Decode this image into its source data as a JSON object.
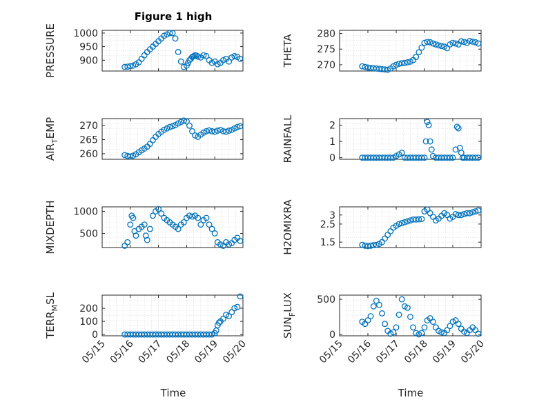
{
  "figure": {
    "title": "Figure 1 high",
    "xlabel": "Time"
  },
  "chart_data": [
    {
      "type": "scatter",
      "ylabel": "PRESSURE",
      "xlim": [
        "05/15",
        "05/20"
      ],
      "ylim": [
        860,
        1010
      ],
      "yticks": [
        900,
        950,
        1000
      ],
      "xticks": [
        "05/15",
        "05/16",
        "05/17",
        "05/18",
        "05/19",
        "05/20"
      ],
      "marker_color": "#0072BD",
      "x": [
        0.8,
        0.9,
        1.0,
        1.1,
        1.2,
        1.3,
        1.4,
        1.5,
        1.6,
        1.7,
        1.8,
        1.9,
        2.0,
        2.1,
        2.2,
        2.3,
        2.4,
        2.5,
        2.6,
        2.7,
        2.8,
        2.9,
        3.0,
        3.05,
        3.1,
        3.15,
        3.2,
        3.25,
        3.3,
        3.35,
        3.4,
        3.5,
        3.6,
        3.7,
        3.8,
        3.9,
        4.0,
        4.1,
        4.2,
        4.3,
        4.4,
        4.5,
        4.6,
        4.7,
        4.8,
        4.9
      ],
      "y": [
        875,
        876,
        878,
        880,
        885,
        892,
        905,
        918,
        930,
        940,
        950,
        960,
        970,
        980,
        990,
        995,
        1000,
        1000,
        980,
        930,
        895,
        875,
        880,
        890,
        900,
        905,
        912,
        915,
        918,
        917,
        913,
        910,
        918,
        915,
        900,
        890,
        895,
        885,
        890,
        900,
        905,
        895,
        910,
        915,
        912,
        905
      ]
    },
    {
      "type": "scatter",
      "ylabel": "THETA",
      "xlim": [
        "05/15",
        "05/20"
      ],
      "ylim": [
        268,
        281
      ],
      "yticks": [
        270,
        275,
        280
      ],
      "xticks": [
        "05/15",
        "05/16",
        "05/17",
        "05/18",
        "05/19",
        "05/20"
      ],
      "marker_color": "#0072BD",
      "x": [
        0.8,
        0.9,
        1.0,
        1.1,
        1.2,
        1.3,
        1.4,
        1.5,
        1.6,
        1.7,
        1.8,
        1.9,
        2.0,
        2.1,
        2.2,
        2.3,
        2.4,
        2.5,
        2.6,
        2.7,
        2.8,
        2.9,
        3.0,
        3.1,
        3.2,
        3.3,
        3.4,
        3.5,
        3.6,
        3.7,
        3.8,
        3.9,
        4.0,
        4.1,
        4.2,
        4.3,
        4.4,
        4.5,
        4.6,
        4.7,
        4.8,
        4.9
      ],
      "y": [
        269.5,
        269.3,
        269.1,
        269.0,
        268.9,
        268.8,
        268.7,
        268.6,
        268.5,
        268.4,
        268.8,
        269.5,
        270.0,
        270.3,
        270.5,
        270.6,
        270.8,
        271.0,
        271.5,
        272.5,
        274.0,
        275.5,
        277.0,
        277.3,
        277.2,
        276.8,
        276.5,
        276.2,
        276.0,
        275.8,
        275.3,
        276.5,
        277.0,
        276.8,
        276.5,
        277.5,
        277.3,
        277.0,
        277.6,
        277.4,
        277.2,
        276.8
      ]
    },
    {
      "type": "scatter",
      "ylabel": "AIR_TEMP",
      "xlim": [
        "05/15",
        "05/20"
      ],
      "ylim": [
        258,
        272.5
      ],
      "yticks": [
        260,
        265,
        270
      ],
      "xticks": [
        "05/15",
        "05/16",
        "05/17",
        "05/18",
        "05/19",
        "05/20"
      ],
      "marker_color": "#0072BD",
      "x": [
        0.8,
        0.9,
        1.0,
        1.1,
        1.2,
        1.3,
        1.4,
        1.5,
        1.6,
        1.7,
        1.8,
        1.9,
        2.0,
        2.1,
        2.2,
        2.3,
        2.4,
        2.5,
        2.6,
        2.7,
        2.8,
        2.9,
        3.0,
        3.1,
        3.2,
        3.3,
        3.4,
        3.5,
        3.6,
        3.7,
        3.8,
        3.9,
        4.0,
        4.1,
        4.2,
        4.3,
        4.4,
        4.5,
        4.6,
        4.7,
        4.8,
        4.9
      ],
      "y": [
        259.5,
        259.2,
        259.0,
        259.3,
        259.8,
        260.5,
        261.2,
        261.8,
        262.5,
        263.5,
        264.8,
        266.0,
        267.0,
        267.8,
        268.5,
        269.0,
        269.5,
        269.8,
        270.2,
        270.8,
        271.3,
        271.8,
        271.5,
        270.0,
        268.0,
        266.5,
        266.0,
        266.8,
        267.5,
        268.0,
        268.3,
        268.0,
        267.8,
        268.2,
        268.5,
        268.0,
        267.8,
        268.2,
        268.5,
        269.0,
        269.5,
        269.8
      ]
    },
    {
      "type": "scatter",
      "ylabel": "RAINFALL",
      "xlim": [
        "05/15",
        "05/20"
      ],
      "ylim": [
        -0.1,
        2.4
      ],
      "yticks": [
        0,
        1,
        2
      ],
      "xticks": [
        "05/15",
        "05/16",
        "05/17",
        "05/18",
        "05/19",
        "05/20"
      ],
      "marker_color": "#0072BD",
      "x": [
        0.8,
        0.9,
        1.0,
        1.1,
        1.2,
        1.3,
        1.4,
        1.5,
        1.6,
        1.7,
        1.8,
        1.9,
        2.0,
        2.1,
        2.2,
        2.3,
        2.4,
        2.5,
        2.6,
        2.7,
        2.8,
        2.9,
        3.0,
        3.05,
        3.1,
        3.15,
        3.2,
        3.25,
        3.3,
        3.4,
        3.5,
        3.6,
        3.7,
        3.8,
        3.9,
        4.0,
        4.1,
        4.15,
        4.2,
        4.25,
        4.3,
        4.35,
        4.4,
        4.5,
        4.6,
        4.7,
        4.8,
        4.9
      ],
      "y": [
        0,
        0,
        0,
        0,
        0,
        0,
        0,
        0,
        0,
        0,
        0,
        0,
        0.1,
        0.2,
        0.3,
        0,
        0,
        0,
        0,
        0,
        0,
        0,
        0,
        1.0,
        2.2,
        2.0,
        1.0,
        0.5,
        0.1,
        0,
        0,
        0,
        0,
        0,
        0,
        0,
        0.5,
        1.9,
        1.8,
        0.6,
        0.3,
        0,
        0,
        0,
        0,
        0,
        0,
        0
      ]
    },
    {
      "type": "scatter",
      "ylabel": "MIXDEPTH",
      "xlim": [
        "05/15",
        "05/20"
      ],
      "ylim": [
        180,
        1100
      ],
      "yticks": [
        500,
        1000
      ],
      "xticks": [
        "05/15",
        "05/16",
        "05/17",
        "05/18",
        "05/19",
        "05/20"
      ],
      "marker_color": "#0072BD",
      "x": [
        0.8,
        0.9,
        1.0,
        1.05,
        1.1,
        1.15,
        1.2,
        1.3,
        1.4,
        1.5,
        1.55,
        1.6,
        1.7,
        1.8,
        1.9,
        2.0,
        2.1,
        2.2,
        2.3,
        2.4,
        2.5,
        2.6,
        2.7,
        2.8,
        2.9,
        3.0,
        3.1,
        3.2,
        3.3,
        3.4,
        3.5,
        3.6,
        3.7,
        3.8,
        3.9,
        4.0,
        4.1,
        4.2,
        4.3,
        4.4,
        4.5,
        4.6,
        4.7,
        4.8,
        4.9
      ],
      "y": [
        220,
        300,
        700,
        900,
        850,
        550,
        450,
        600,
        650,
        700,
        450,
        350,
        600,
        900,
        1000,
        1050,
        950,
        850,
        800,
        750,
        700,
        650,
        600,
        700,
        750,
        850,
        900,
        880,
        900,
        850,
        700,
        800,
        850,
        700,
        600,
        500,
        300,
        250,
        220,
        300,
        250,
        280,
        350,
        400,
        330
      ]
    },
    {
      "type": "scatter",
      "ylabel": "H2OMIXRA",
      "xlim": [
        "05/15",
        "05/20"
      ],
      "ylim": [
        1.2,
        3.45
      ],
      "yticks": [
        1.5,
        2.5,
        3
      ],
      "xticks": [
        "05/15",
        "05/16",
        "05/17",
        "05/18",
        "05/19",
        "05/20"
      ],
      "marker_color": "#0072BD",
      "x": [
        0.8,
        0.9,
        1.0,
        1.1,
        1.2,
        1.3,
        1.4,
        1.5,
        1.6,
        1.7,
        1.8,
        1.9,
        2.0,
        2.1,
        2.2,
        2.3,
        2.4,
        2.5,
        2.6,
        2.7,
        2.8,
        2.9,
        3.0,
        3.1,
        3.2,
        3.3,
        3.4,
        3.5,
        3.6,
        3.7,
        3.8,
        3.9,
        4.0,
        4.1,
        4.2,
        4.3,
        4.4,
        4.5,
        4.6,
        4.7,
        4.8,
        4.9
      ],
      "y": [
        1.35,
        1.3,
        1.28,
        1.3,
        1.33,
        1.35,
        1.4,
        1.5,
        1.7,
        1.9,
        2.1,
        2.3,
        2.4,
        2.5,
        2.55,
        2.6,
        2.65,
        2.7,
        2.75,
        2.75,
        2.76,
        2.78,
        3.2,
        3.3,
        3.1,
        2.9,
        2.7,
        2.8,
        2.95,
        3.1,
        3.0,
        2.8,
        2.9,
        3.05,
        3.0,
        3.0,
        3.05,
        3.1,
        3.1,
        3.15,
        3.2,
        3.25
      ]
    },
    {
      "type": "scatter",
      "ylabel": "TERR_MSL",
      "xlim": [
        "05/15",
        "05/20"
      ],
      "ylim": [
        -10,
        300
      ],
      "yticks": [
        0,
        100,
        200
      ],
      "xticks": [
        "05/15",
        "05/16",
        "05/17",
        "05/18",
        "05/19",
        "05/20"
      ],
      "marker_color": "#0072BD",
      "x": [
        0.8,
        0.9,
        1.0,
        1.1,
        1.2,
        1.3,
        1.4,
        1.5,
        1.6,
        1.7,
        1.8,
        1.9,
        2.0,
        2.1,
        2.2,
        2.3,
        2.4,
        2.5,
        2.6,
        2.7,
        2.8,
        2.9,
        3.0,
        3.1,
        3.2,
        3.3,
        3.4,
        3.5,
        3.6,
        3.7,
        3.8,
        3.9,
        4.0,
        4.05,
        4.1,
        4.15,
        4.2,
        4.3,
        4.4,
        4.5,
        4.6,
        4.7,
        4.8,
        4.9
      ],
      "y": [
        0,
        0,
        0,
        0,
        0,
        0,
        0,
        0,
        0,
        0,
        0,
        0,
        0,
        0,
        0,
        0,
        0,
        0,
        0,
        0,
        0,
        0,
        0,
        0,
        0,
        0,
        0,
        0,
        0,
        0,
        0,
        0,
        10,
        30,
        70,
        90,
        100,
        120,
        150,
        140,
        170,
        200,
        210,
        290
      ]
    },
    {
      "type": "scatter",
      "ylabel": "SUN_FLUX",
      "xlim": [
        "05/15",
        "05/20"
      ],
      "ylim": [
        -20,
        560
      ],
      "yticks": [
        0,
        500
      ],
      "xticks": [
        "05/15",
        "05/16",
        "05/17",
        "05/18",
        "05/19",
        "05/20"
      ],
      "marker_color": "#0072BD",
      "x": [
        0.8,
        0.9,
        1.0,
        1.1,
        1.2,
        1.3,
        1.4,
        1.5,
        1.6,
        1.7,
        1.8,
        1.9,
        2.0,
        2.1,
        2.2,
        2.3,
        2.4,
        2.5,
        2.6,
        2.7,
        2.8,
        2.9,
        3.0,
        3.1,
        3.2,
        3.3,
        3.4,
        3.5,
        3.6,
        3.7,
        3.8,
        3.9,
        4.0,
        4.1,
        4.2,
        4.3,
        4.4,
        4.5,
        4.6,
        4.7,
        4.8,
        4.9
      ],
      "y": [
        180,
        150,
        200,
        260,
        400,
        480,
        420,
        300,
        150,
        50,
        10,
        30,
        100,
        280,
        500,
        400,
        380,
        250,
        100,
        20,
        0,
        20,
        100,
        200,
        230,
        180,
        100,
        50,
        30,
        20,
        60,
        120,
        180,
        200,
        150,
        80,
        40,
        20,
        60,
        100,
        60,
        10
      ]
    }
  ]
}
